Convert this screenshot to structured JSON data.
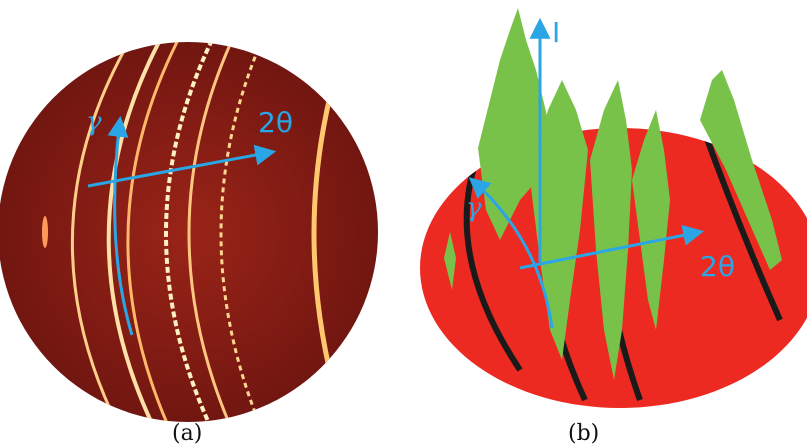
{
  "panels": [
    {
      "caption": "(a)",
      "axis_labels": {
        "two_theta": "2θ",
        "gamma": "γ"
      }
    },
    {
      "caption": "(b)",
      "axis_labels": {
        "intensity": "I",
        "two_theta": "2θ",
        "gamma": "γ"
      }
    }
  ],
  "colors": {
    "detector_background": "#8a1e14",
    "ring_hot": "#ffd08a",
    "surface_base": "#ec2a22",
    "peak_fill": "#79c24a",
    "axis_arrow": "#2aa6e6"
  }
}
